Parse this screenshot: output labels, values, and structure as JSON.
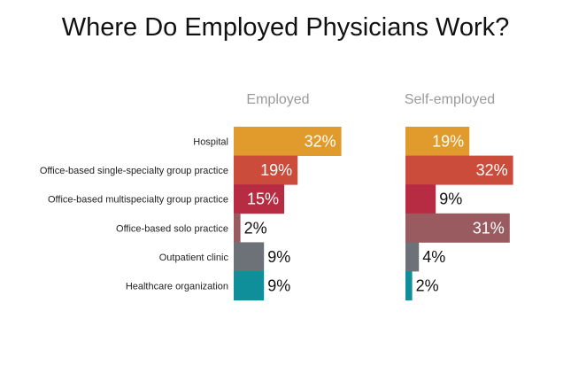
{
  "chart_data": {
    "type": "bar",
    "orientation": "horizontal",
    "title": "Where Do Employed Physicians Work?",
    "categories": [
      "Hospital",
      "Office-based single-specialty group practice",
      "Office-based multispecialty group practice",
      "Office-based solo practice",
      "Outpatient clinic",
      "Healthcare organization"
    ],
    "colors": [
      "#e19a2c",
      "#cc4c3c",
      "#b82c43",
      "#9a5b60",
      "#6d7178",
      "#0e8f9a"
    ],
    "series": [
      {
        "name": "Employed",
        "values": [
          32,
          19,
          15,
          2,
          9,
          9
        ],
        "labels": [
          "32%",
          "19%",
          "15%",
          "2%",
          "9%",
          "9%"
        ]
      },
      {
        "name": "Self-employed",
        "values": [
          19,
          32,
          9,
          31,
          4,
          2
        ],
        "labels": [
          "19%",
          "32%",
          "9%",
          "31%",
          "4%",
          "2%"
        ]
      }
    ],
    "unit": "%",
    "grid": false
  }
}
